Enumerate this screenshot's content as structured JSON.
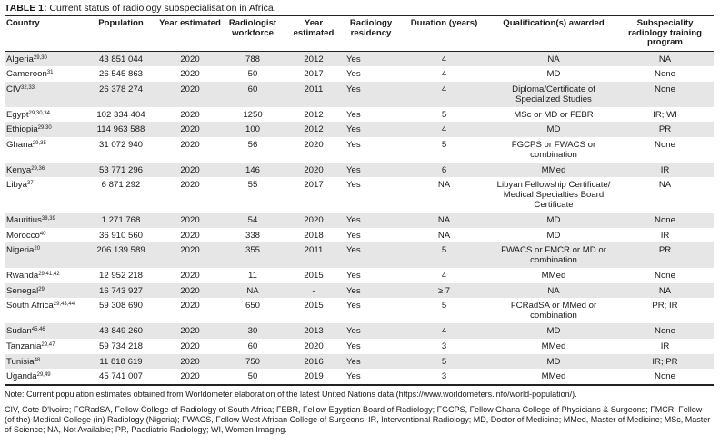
{
  "table": {
    "title_prefix": "TABLE 1:",
    "title": " Current status of radiology subspecialisation in Africa.",
    "headers": [
      "Country",
      "Population",
      "Year estimated",
      "Radiologist workforce",
      "Year estimated",
      "Radiology residency",
      "Duration (years)",
      "Qualification(s) awarded",
      "Subspeciality radiology training program"
    ],
    "rows": [
      {
        "country": "Algeria",
        "refs": "29,30",
        "population": "43 851 044",
        "pop_year": "2020",
        "workforce": "788",
        "wf_year": "2012",
        "residency": "Yes",
        "duration": "4",
        "qualification": "NA",
        "subspeciality": "NA"
      },
      {
        "country": "Cameroon",
        "refs": "31",
        "population": "26 545 863",
        "pop_year": "2020",
        "workforce": "50",
        "wf_year": "2017",
        "residency": "Yes",
        "duration": "4",
        "qualification": "MD",
        "subspeciality": "None"
      },
      {
        "country": "CIV",
        "refs": "32,33",
        "population": "26 378 274",
        "pop_year": "2020",
        "workforce": "60",
        "wf_year": "2011",
        "residency": "Yes",
        "duration": "4",
        "qualification": "Diploma/Certificate of Specialized Studies",
        "subspeciality": "None"
      },
      {
        "country": "Egypt",
        "refs": "29,30,34",
        "population": "102 334 404",
        "pop_year": "2020",
        "workforce": "1250",
        "wf_year": "2012",
        "residency": "Yes",
        "duration": "5",
        "qualification": "MSc or MD or FEBR",
        "subspeciality": "IR; WI"
      },
      {
        "country": "Ethiopia",
        "refs": "29,30",
        "population": "114 963 588",
        "pop_year": "2020",
        "workforce": "100",
        "wf_year": "2012",
        "residency": "Yes",
        "duration": "4",
        "qualification": "MD",
        "subspeciality": "PR"
      },
      {
        "country": "Ghana",
        "refs": "29,35",
        "population": "31 072 940",
        "pop_year": "2020",
        "workforce": "56",
        "wf_year": "2020",
        "residency": "Yes",
        "duration": "5",
        "qualification": "FGCPS or FWACS or combination",
        "subspeciality": "None"
      },
      {
        "country": "Kenya",
        "refs": "29,36",
        "population": "53 771 296",
        "pop_year": "2020",
        "workforce": "146",
        "wf_year": "2020",
        "residency": "Yes",
        "duration": "6",
        "qualification": "MMed",
        "subspeciality": "IR"
      },
      {
        "country": "Libya",
        "refs": "37",
        "population": "6 871 292",
        "pop_year": "2020",
        "workforce": "55",
        "wf_year": "2017",
        "residency": "Yes",
        "duration": "NA",
        "qualification": "Libyan Fellowship Certificate/ Medical Specialties Board Certificate",
        "subspeciality": "NA"
      },
      {
        "country": "Mauritius",
        "refs": "38,39",
        "population": "1 271 768",
        "pop_year": "2020",
        "workforce": "54",
        "wf_year": "2020",
        "residency": "Yes",
        "duration": "NA",
        "qualification": "MD",
        "subspeciality": "None"
      },
      {
        "country": "Morocco",
        "refs": "40",
        "population": "36 910 560",
        "pop_year": "2020",
        "workforce": "338",
        "wf_year": "2018",
        "residency": "Yes",
        "duration": "NA",
        "qualification": "MD",
        "subspeciality": "IR"
      },
      {
        "country": "Nigeria",
        "refs": "20",
        "population": "206 139 589",
        "pop_year": "2020",
        "workforce": "355",
        "wf_year": "2011",
        "residency": "Yes",
        "duration": "5",
        "qualification": "FWACS or FMCR or MD or combination",
        "subspeciality": "PR"
      },
      {
        "country": "Rwanda",
        "refs": "29,41,42",
        "population": "12 952 218",
        "pop_year": "2020",
        "workforce": "11",
        "wf_year": "2015",
        "residency": "Yes",
        "duration": "4",
        "qualification": "MMed",
        "subspeciality": "None"
      },
      {
        "country": "Senegal",
        "refs": "29",
        "population": "16 743 927",
        "pop_year": "2020",
        "workforce": "NA",
        "wf_year": "-",
        "residency": "Yes",
        "duration": "≥ 7",
        "qualification": "NA",
        "subspeciality": "NA"
      },
      {
        "country": "South Africa",
        "refs": "29,43,44",
        "population": "59 308 690",
        "pop_year": "2020",
        "workforce": "650",
        "wf_year": "2015",
        "residency": "Yes",
        "duration": "5",
        "qualification": "FCRadSA or MMed or combination",
        "subspeciality": "PR; IR"
      },
      {
        "country": "Sudan",
        "refs": "45,46",
        "population": "43 849 260",
        "pop_year": "2020",
        "workforce": "30",
        "wf_year": "2013",
        "residency": "Yes",
        "duration": "4",
        "qualification": "MD",
        "subspeciality": "None"
      },
      {
        "country": "Tanzania",
        "refs": "29,47",
        "population": "59 734 218",
        "pop_year": "2020",
        "workforce": "60",
        "wf_year": "2020",
        "residency": "Yes",
        "duration": "3",
        "qualification": "MMed",
        "subspeciality": "IR"
      },
      {
        "country": "Tunisia",
        "refs": "48",
        "population": "11 818 619",
        "pop_year": "2020",
        "workforce": "750",
        "wf_year": "2016",
        "residency": "Yes",
        "duration": "5",
        "qualification": "MD",
        "subspeciality": "IR; PR"
      },
      {
        "country": "Uganda",
        "refs": "29,49",
        "population": "45 741 007",
        "pop_year": "2020",
        "workforce": "50",
        "wf_year": "2019",
        "residency": "Yes",
        "duration": "3",
        "qualification": "MMed",
        "subspeciality": "None"
      }
    ],
    "note": "Note: Current population estimates obtained from Worldometer elaboration of the latest United Nations data (https://www.worldometers.info/world-population/).",
    "abbreviations": "CIV, Cote D'Ivoire; FCRadSA, Fellow College of Radiology of South Africa; FEBR, Fellow Egyptian Board of Radiology; FGCPS, Fellow Ghana College of Physicians & Surgeons; FMCR, Fellow (of the) Medical College (in) Radiology (Nigeria); FWACS, Fellow West African College of Surgeons; IR, Interventional Radiology; MD, Doctor of Medicine; MMed, Master of Medicine; MSc, Master of Science; NA, Not Available; PR, Paediatric Radiology; WI, Women Imaging."
  },
  "colors": {
    "shaded_row": "#e6e6e6",
    "rule": "#222222"
  }
}
